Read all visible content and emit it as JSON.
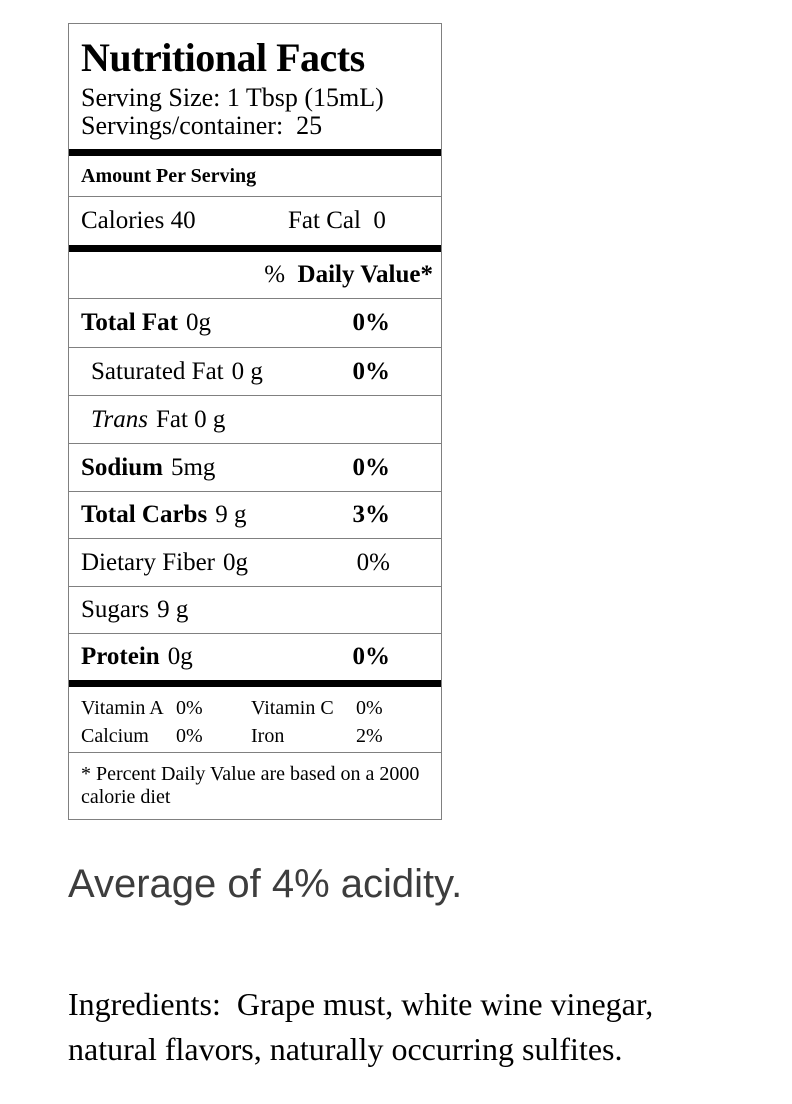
{
  "colors": {
    "border_gray": "#808080",
    "bar_black": "#000000",
    "text_black": "#000000",
    "acidity_gray": "#3d3d3d",
    "background": "#ffffff"
  },
  "label": {
    "title": "Nutritional Facts",
    "serving_size": "Serving Size: 1 Tbsp (15mL)",
    "servings_per_container": "Servings/container:  25",
    "amount_per_serving": "Amount Per Serving",
    "calories": "Calories 40",
    "fat_cal": "Fat Cal  0",
    "dv_percent_sign": "%  ",
    "dv_label": "Daily Value*",
    "rows": [
      {
        "name": "Total Fat",
        "amount": "0g",
        "dv": "0%"
      },
      {
        "name": "Saturated Fat",
        "amount": "0 g",
        "dv": "0%"
      },
      {
        "name": "Trans",
        "amount": "Fat 0 g",
        "dv": ""
      },
      {
        "name": "Sodium",
        "amount": "5mg",
        "dv": "0%"
      },
      {
        "name": "Total Carbs",
        "amount": "9 g",
        "dv": "3%"
      },
      {
        "name": "Dietary Fiber",
        "amount": "0g",
        "dv": "0%"
      },
      {
        "name": "Sugars",
        "amount": "9 g",
        "dv": ""
      },
      {
        "name": "Protein",
        "amount": "0g",
        "dv": "0%"
      }
    ],
    "vitamins": [
      {
        "name": "Vitamin A",
        "value": "0%"
      },
      {
        "name": "Vitamin C",
        "value": "0%"
      },
      {
        "name": "Calcium",
        "value": "0%"
      },
      {
        "name": "Iron",
        "value": "2%"
      }
    ],
    "footnote": "* Percent Daily Value are based on a 2000 calorie diet"
  },
  "notes": {
    "acidity": "Average of 4% acidity.",
    "ingredients": "Ingredients:  Grape must, white wine vinegar, natural flavors, naturally occurring sulfites."
  }
}
